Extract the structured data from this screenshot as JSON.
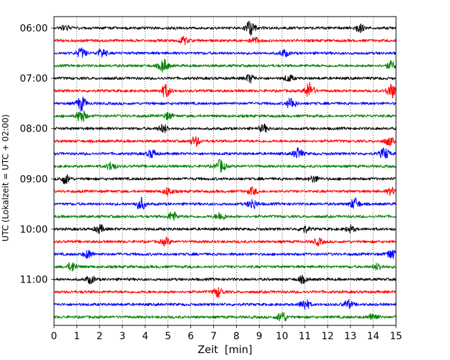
{
  "chart_data": {
    "type": "line",
    "title": "",
    "xlabel": "Zeit  [min]",
    "ylabel": "UTC (Lokalzeit = UTC + 02:00)",
    "xlim": [
      0,
      15
    ],
    "xticks": [
      0,
      1,
      2,
      3,
      4,
      5,
      6,
      7,
      8,
      9,
      10,
      11,
      12,
      13,
      14,
      15
    ],
    "grid": "vertical-dotted",
    "start_time": "06:00",
    "trace_interval_minutes": 15,
    "trace_count": 24,
    "ytick_labels": [
      "06:00",
      "07:00",
      "08:00",
      "09:00",
      "10:00",
      "11:00"
    ],
    "color_cycle": [
      "#000000",
      "#ff0000",
      "#0000ff",
      "#008000"
    ],
    "series": [
      {
        "start": "06:00",
        "color": "#000000",
        "events": [
          {
            "t": 8.6,
            "amp": 1.0
          },
          {
            "t": 13.4,
            "amp": 0.5
          },
          {
            "t": 0.5,
            "amp": 0.3
          }
        ]
      },
      {
        "start": "06:15",
        "color": "#ff0000",
        "events": [
          {
            "t": 5.7,
            "amp": 0.45
          },
          {
            "t": 8.8,
            "amp": 0.4
          }
        ]
      },
      {
        "start": "06:30",
        "color": "#0000ff",
        "events": [
          {
            "t": 1.2,
            "amp": 0.6
          },
          {
            "t": 2.1,
            "amp": 0.55
          },
          {
            "t": 10.1,
            "amp": 0.4
          }
        ]
      },
      {
        "start": "06:45",
        "color": "#008000",
        "events": [
          {
            "t": 4.8,
            "amp": 0.8
          },
          {
            "t": 14.8,
            "amp": 0.5
          }
        ]
      },
      {
        "start": "07:00",
        "color": "#000000",
        "events": [
          {
            "t": 8.6,
            "amp": 0.5
          },
          {
            "t": 10.3,
            "amp": 0.4
          }
        ]
      },
      {
        "start": "07:15",
        "color": "#ff0000",
        "events": [
          {
            "t": 4.9,
            "amp": 0.8
          },
          {
            "t": 11.2,
            "amp": 1.0
          },
          {
            "t": 14.8,
            "amp": 0.9
          }
        ]
      },
      {
        "start": "07:30",
        "color": "#0000ff",
        "events": [
          {
            "t": 1.2,
            "amp": 0.9
          },
          {
            "t": 10.4,
            "amp": 0.7
          }
        ]
      },
      {
        "start": "07:45",
        "color": "#008000",
        "events": [
          {
            "t": 1.2,
            "amp": 0.8
          },
          {
            "t": 5.0,
            "amp": 0.4
          }
        ]
      },
      {
        "start": "08:00",
        "color": "#000000",
        "events": [
          {
            "t": 4.8,
            "amp": 0.5
          },
          {
            "t": 9.2,
            "amp": 0.45
          }
        ]
      },
      {
        "start": "08:15",
        "color": "#ff0000",
        "events": [
          {
            "t": 6.2,
            "amp": 0.6
          },
          {
            "t": 14.7,
            "amp": 0.5
          }
        ]
      },
      {
        "start": "08:30",
        "color": "#0000ff",
        "events": [
          {
            "t": 10.7,
            "amp": 0.7
          },
          {
            "t": 14.5,
            "amp": 0.7
          },
          {
            "t": 4.3,
            "amp": 0.5
          }
        ]
      },
      {
        "start": "08:45",
        "color": "#008000",
        "events": [
          {
            "t": 2.5,
            "amp": 0.5
          },
          {
            "t": 7.3,
            "amp": 0.8
          }
        ]
      },
      {
        "start": "09:00",
        "color": "#000000",
        "events": [
          {
            "t": 0.5,
            "amp": 0.6
          },
          {
            "t": 11.4,
            "amp": 0.4
          }
        ]
      },
      {
        "start": "09:15",
        "color": "#ff0000",
        "events": [
          {
            "t": 5.0,
            "amp": 0.5
          },
          {
            "t": 8.7,
            "amp": 0.45
          },
          {
            "t": 14.8,
            "amp": 0.45
          }
        ]
      },
      {
        "start": "09:30",
        "color": "#0000ff",
        "events": [
          {
            "t": 3.8,
            "amp": 0.8
          },
          {
            "t": 8.7,
            "amp": 0.6
          },
          {
            "t": 13.2,
            "amp": 0.7
          }
        ]
      },
      {
        "start": "09:45",
        "color": "#008000",
        "events": [
          {
            "t": 5.2,
            "amp": 0.6
          },
          {
            "t": 7.3,
            "amp": 0.5
          }
        ]
      },
      {
        "start": "10:00",
        "color": "#000000",
        "events": [
          {
            "t": 2.0,
            "amp": 0.5
          },
          {
            "t": 11.0,
            "amp": 0.4
          },
          {
            "t": 13.0,
            "amp": 0.4
          }
        ]
      },
      {
        "start": "10:15",
        "color": "#ff0000",
        "events": [
          {
            "t": 4.9,
            "amp": 0.45
          },
          {
            "t": 11.6,
            "amp": 0.4
          }
        ]
      },
      {
        "start": "10:30",
        "color": "#0000ff",
        "events": [
          {
            "t": 1.5,
            "amp": 0.5
          },
          {
            "t": 14.8,
            "amp": 0.6
          }
        ]
      },
      {
        "start": "10:45",
        "color": "#008000",
        "events": [
          {
            "t": 0.8,
            "amp": 0.6
          },
          {
            "t": 14.2,
            "amp": 0.4
          }
        ]
      },
      {
        "start": "11:00",
        "color": "#000000",
        "events": [
          {
            "t": 1.6,
            "amp": 0.45
          },
          {
            "t": 10.9,
            "amp": 0.4
          }
        ]
      },
      {
        "start": "11:15",
        "color": "#ff0000",
        "events": [
          {
            "t": 7.2,
            "amp": 0.6
          }
        ]
      },
      {
        "start": "11:30",
        "color": "#0000ff",
        "events": [
          {
            "t": 11.0,
            "amp": 0.7
          },
          {
            "t": 12.9,
            "amp": 0.5
          }
        ]
      },
      {
        "start": "11:45",
        "color": "#008000",
        "events": [
          {
            "t": 10.0,
            "amp": 0.7
          },
          {
            "t": 14.0,
            "amp": 0.5
          }
        ]
      }
    ]
  }
}
